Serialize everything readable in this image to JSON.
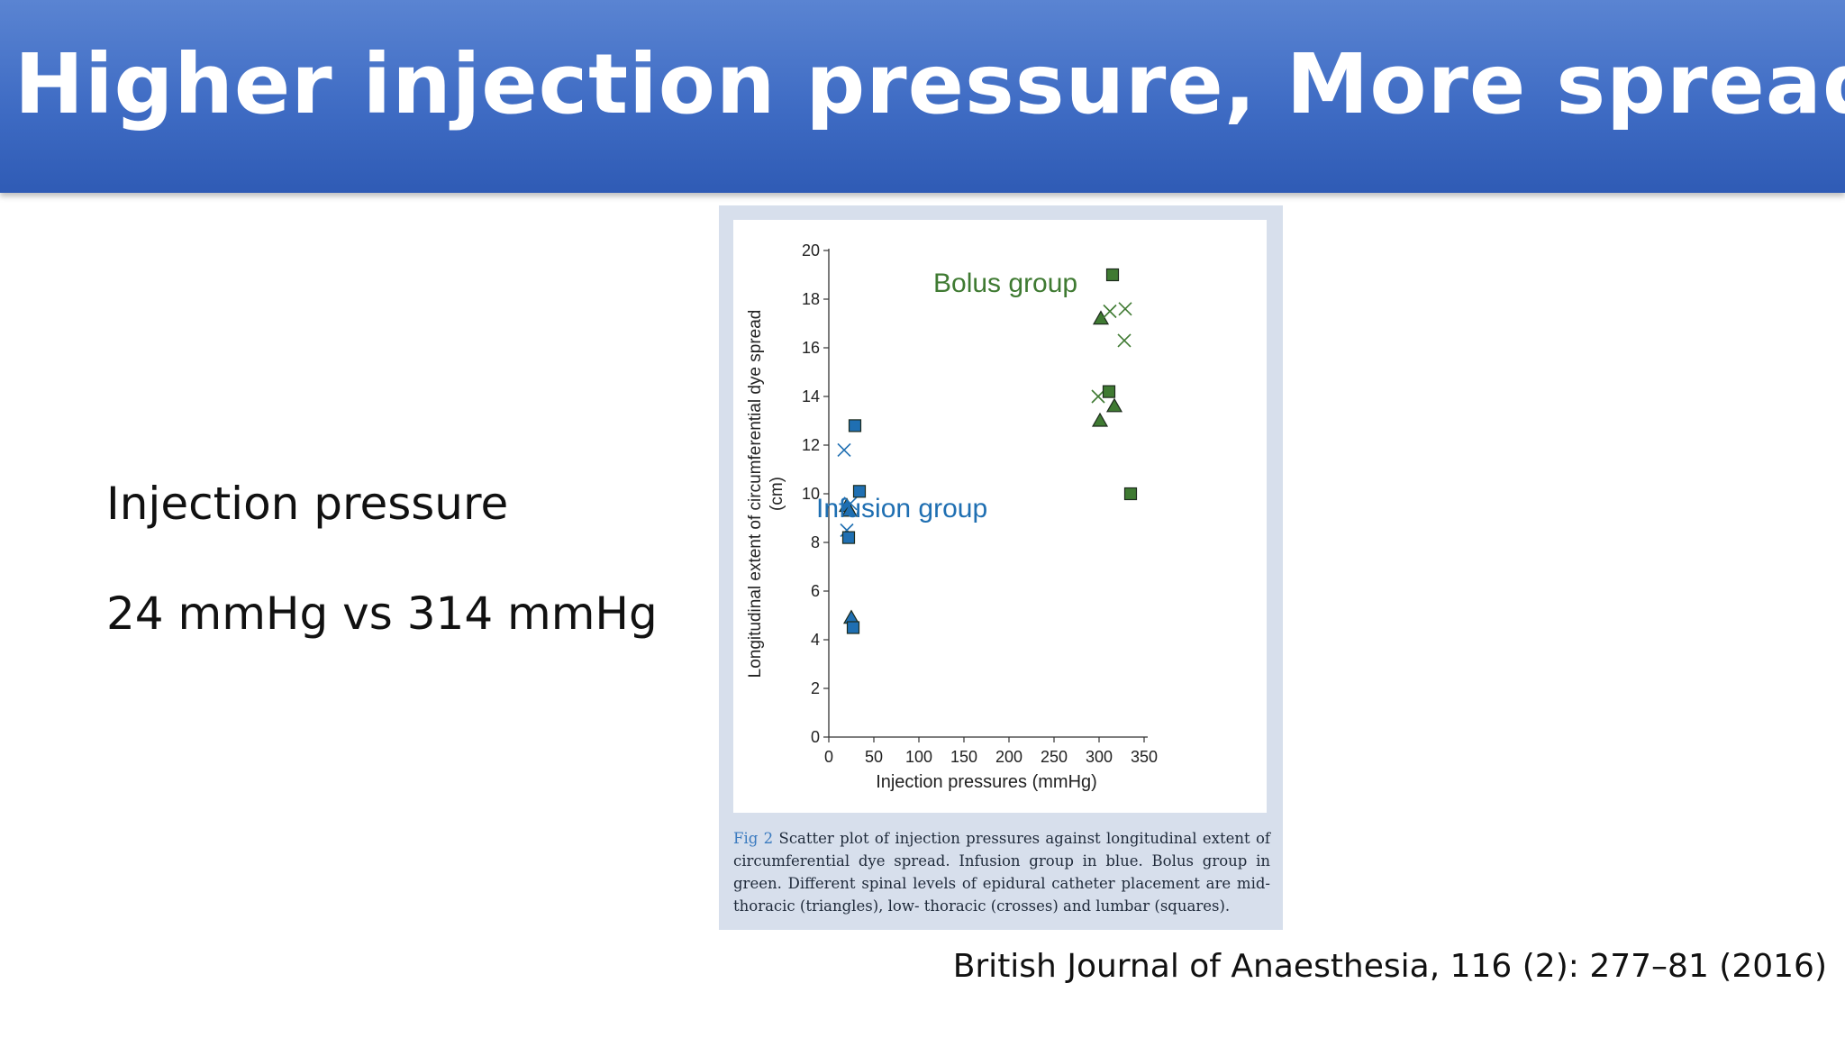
{
  "slide": {
    "title": "Higher injection pressure, More spread",
    "line1": "Injection pressure",
    "line2": "24 mmHg vs 314 mmHg",
    "citation": "British Journal of Anaesthesia, 116 (2): 277–81 (2016)"
  },
  "figure": {
    "label": "Fig 2",
    "caption": "Scatter plot of injection pressures against longitudinal extent of circumferential dye spread. Infusion group in blue. Bolus group in green. Different spinal levels of epidural catheter placement are mid-thoracic (triangles), low- thoracic (crosses) and lumbar (squares)."
  },
  "colors": {
    "banner": "#3f6cc4",
    "infusion": "#1f6fb2",
    "bolus": "#3f7a32"
  },
  "chart_data": {
    "type": "scatter",
    "xlabel": "Injection pressures (mmHg)",
    "ylabel": "Longitudinal extent of circumferential dye spread (cm)",
    "xlim": [
      0,
      350
    ],
    "ylim": [
      0,
      20
    ],
    "xticks": [
      0,
      50,
      100,
      150,
      200,
      250,
      300,
      350
    ],
    "yticks": [
      0,
      2,
      4,
      6,
      8,
      10,
      12,
      14,
      16,
      18,
      20
    ],
    "grid": false,
    "annotations": [
      {
        "text": "Bolus group",
        "group": "bolus"
      },
      {
        "text": "Infusion group",
        "group": "infusion"
      }
    ],
    "series": [
      {
        "group": "infusion",
        "shape": "triangle",
        "points": [
          [
            20,
            9.5
          ],
          [
            23,
            9.3
          ],
          [
            25,
            4.9
          ]
        ]
      },
      {
        "group": "infusion",
        "shape": "cross",
        "points": [
          [
            17,
            11.8
          ],
          [
            20,
            8.5
          ],
          [
            24,
            9.6
          ]
        ]
      },
      {
        "group": "infusion",
        "shape": "square",
        "points": [
          [
            29,
            12.8
          ],
          [
            34,
            10.1
          ],
          [
            22,
            8.2
          ],
          [
            27,
            4.5
          ]
        ]
      },
      {
        "group": "bolus",
        "shape": "triangle",
        "points": [
          [
            302,
            17.2
          ],
          [
            301,
            13.0
          ],
          [
            317,
            13.6
          ]
        ]
      },
      {
        "group": "bolus",
        "shape": "cross",
        "points": [
          [
            312,
            17.5
          ],
          [
            329,
            17.6
          ],
          [
            328,
            16.3
          ],
          [
            299,
            14.0
          ]
        ]
      },
      {
        "group": "bolus",
        "shape": "square",
        "points": [
          [
            315,
            19.0
          ],
          [
            311,
            14.2
          ],
          [
            335,
            10.0
          ]
        ]
      }
    ]
  }
}
